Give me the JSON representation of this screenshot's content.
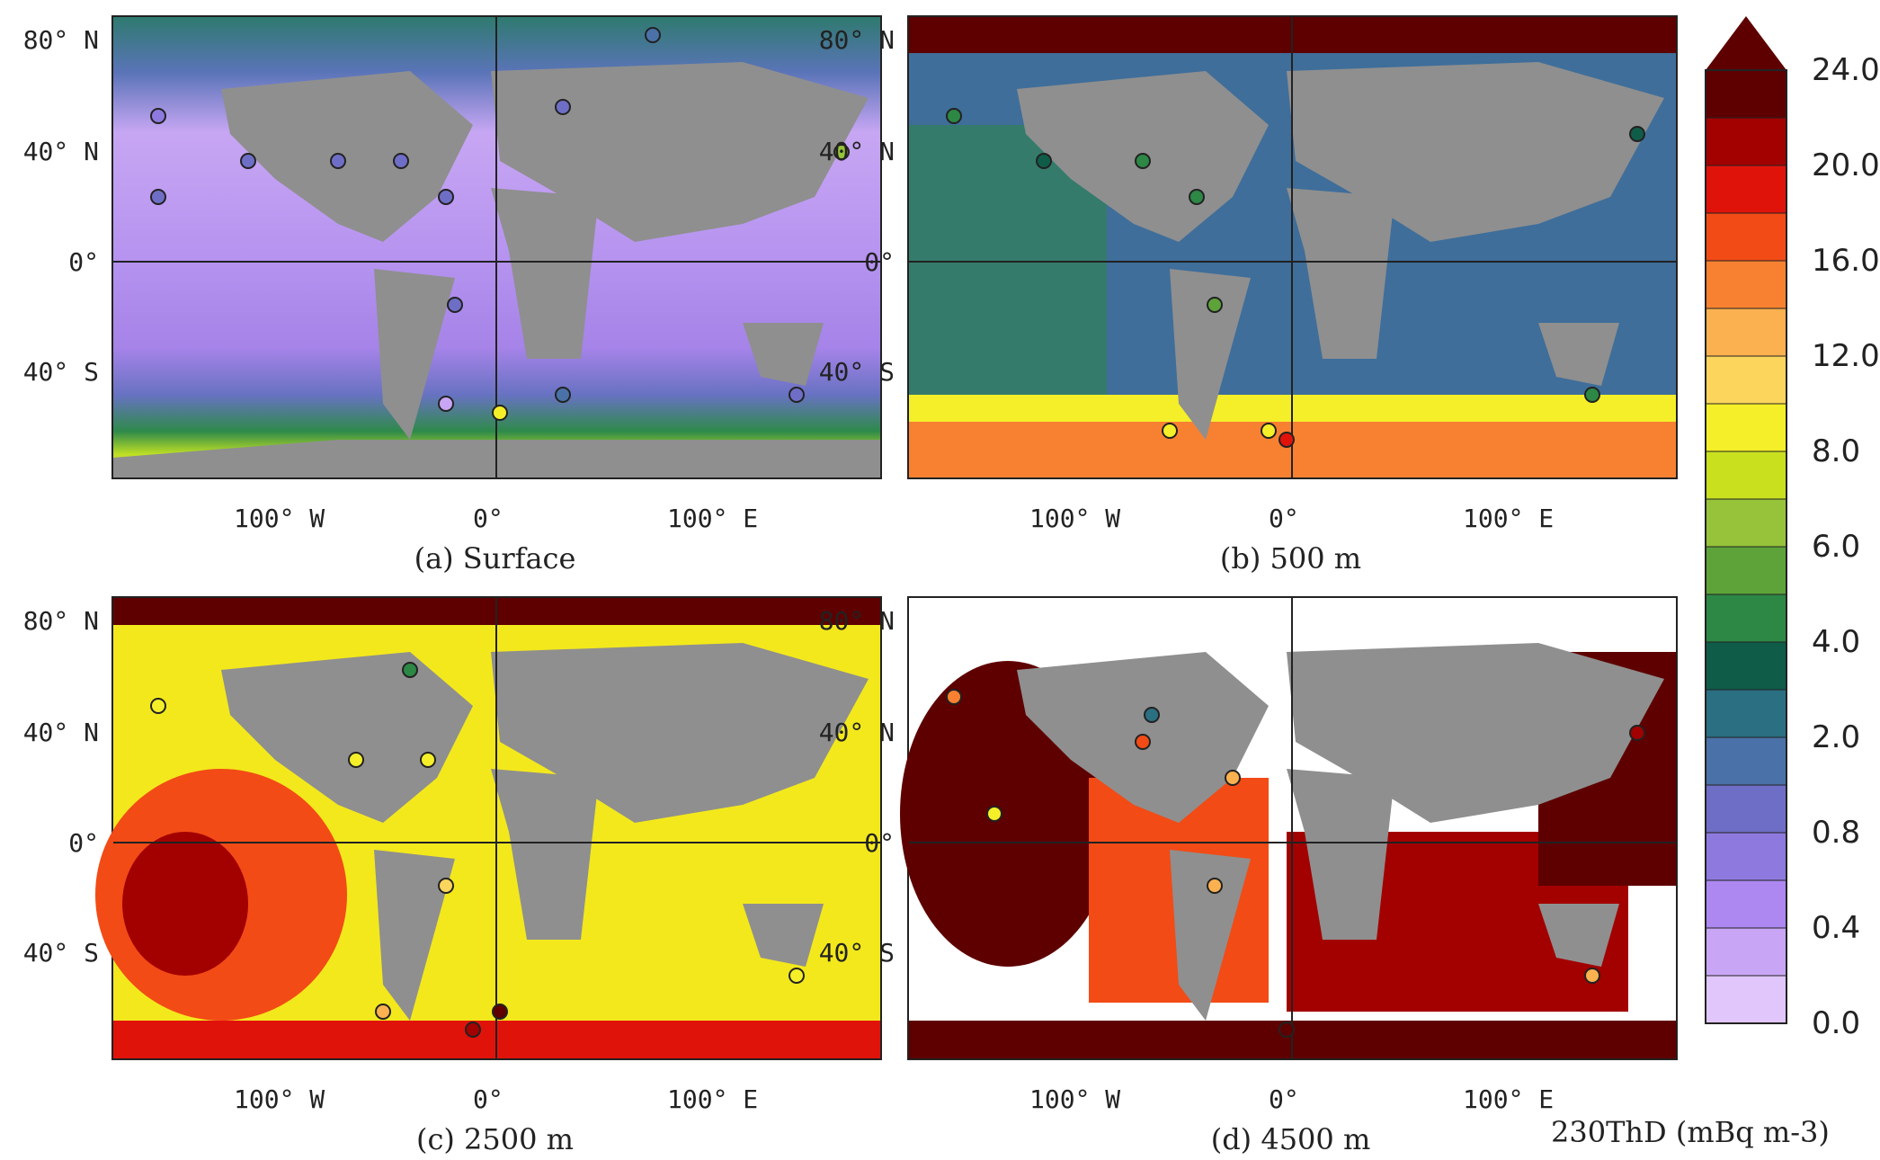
{
  "figure": {
    "panels": [
      {
        "id": "a",
        "caption": "(a) Surface"
      },
      {
        "id": "b",
        "caption": "(b) 500 m"
      },
      {
        "id": "c",
        "caption": "(c) 2500 m"
      },
      {
        "id": "d",
        "caption": "(d) 4500 m"
      }
    ],
    "lat_ticks": [
      "80° N",
      "40° N",
      "0°",
      "40° S"
    ],
    "lon_ticks": [
      "100° W",
      "0°",
      "100° E"
    ],
    "colorbar": {
      "ticks": [
        "24.0",
        "20.0",
        "16.0",
        "12.0",
        "8.0",
        "6.0",
        "4.0",
        "2.0",
        "0.8",
        "0.4",
        "0.0"
      ],
      "colors": [
        "#5e0000",
        "#a30000",
        "#e0130b",
        "#f24b16",
        "#f88131",
        "#fbb14f",
        "#fbd55c",
        "#f4ef28",
        "#c9e01f",
        "#97c33a",
        "#5da33a",
        "#2d8745",
        "#0f5c49",
        "#2b6f82",
        "#4a72a8",
        "#6f6ec6",
        "#8e7ade",
        "#ad88f0",
        "#c9a6f5",
        "#e0c6fa"
      ],
      "label": "230ThD (mBq m-3)"
    },
    "continent_color": "#8f8f8f"
  }
}
